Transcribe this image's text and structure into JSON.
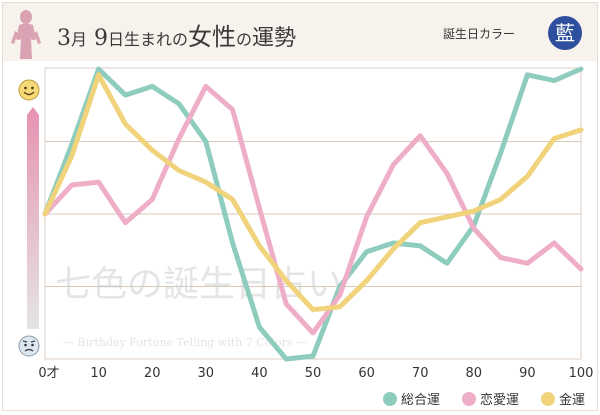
{
  "header": {
    "title_month_num": "3",
    "title_month_unit": "月",
    "title_day_num": "9",
    "title_day_unit": "日生まれの",
    "title_emph": "女性",
    "title_no": "の",
    "title_tail": "運勢",
    "color_label": "誕生日カラー",
    "color_kanji": "藍",
    "color_hex": "#2d4f9e"
  },
  "watermark": {
    "line1": "七色の誕生日占い",
    "line2": "— Birthday Fortune Telling with 7 Colors —"
  },
  "colors": {
    "general": "#8ecdbd",
    "love": "#efaec8",
    "money": "#f0d37a"
  },
  "chart_data": {
    "type": "line",
    "x": [
      0,
      5,
      10,
      15,
      20,
      25,
      30,
      35,
      40,
      45,
      50,
      55,
      60,
      65,
      70,
      75,
      80,
      85,
      90,
      95,
      100
    ],
    "x_ticks": [
      "0才",
      "10",
      "20",
      "30",
      "40",
      "50",
      "60",
      "70",
      "80",
      "90",
      "100"
    ],
    "xlim": [
      0,
      100
    ],
    "ylim": [
      0,
      100
    ],
    "y_top_icon": "smile-face-icon",
    "y_bottom_icon": "worried-face-icon",
    "grid": true,
    "legend_position": "bottom-right",
    "series": [
      {
        "name": "総合運",
        "color": "#8ecdbd",
        "values": [
          50,
          74,
          100,
          91,
          94,
          88,
          75,
          40,
          11,
          0,
          1,
          25,
          37,
          40,
          39,
          33,
          46,
          71,
          98,
          96,
          100
        ]
      },
      {
        "name": "恋愛運",
        "color": "#efaec8",
        "values": [
          50,
          60,
          61,
          47,
          55,
          76,
          94,
          86,
          52,
          19,
          9,
          22,
          49,
          67,
          77,
          64,
          45,
          35,
          33,
          40,
          31
        ]
      },
      {
        "name": "金運",
        "color": "#f0d37a",
        "values": [
          50,
          70,
          98,
          81,
          72,
          65,
          61,
          55,
          39,
          27,
          17,
          18,
          27,
          38,
          47,
          49,
          51,
          55,
          63,
          76,
          79
        ]
      }
    ]
  }
}
